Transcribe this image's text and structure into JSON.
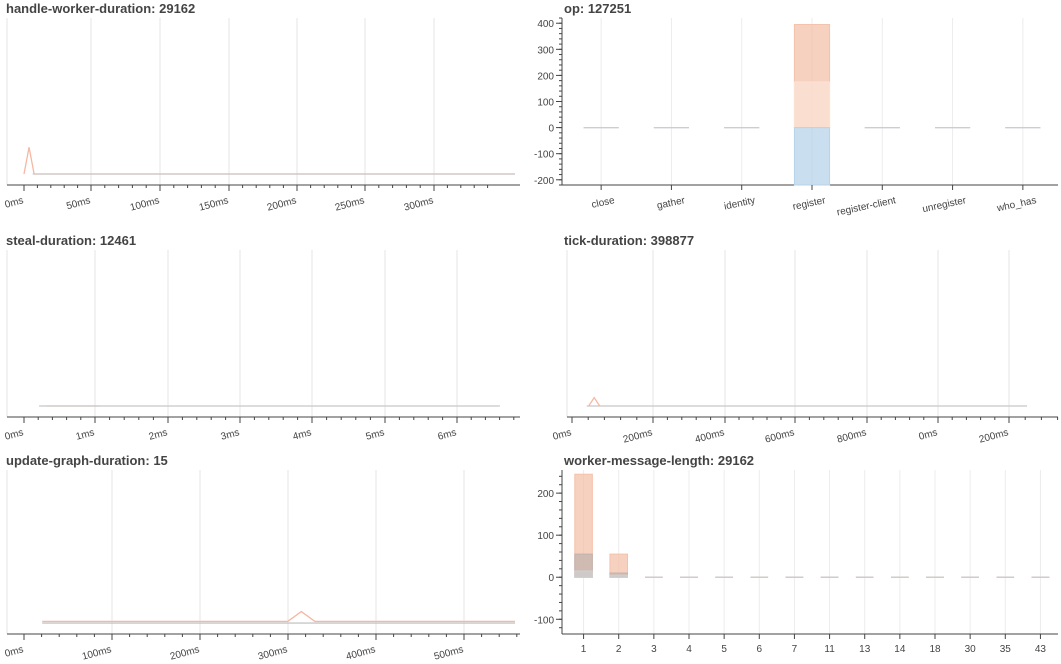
{
  "chart_data": [
    {
      "id": "p1",
      "type": "line",
      "title": "handle-worker-duration: 29162",
      "xlabel": "",
      "ylabel": "",
      "ticks": [
        "0ms",
        "50ms",
        "100ms",
        "150ms",
        "200ms",
        "250ms",
        "300ms"
      ],
      "xlim_ms": [
        0,
        340
      ],
      "ylim": [
        0,
        1
      ],
      "grid": true,
      "series": [
        {
          "color": "#f5b8a3",
          "x": [
            0,
            3.5,
            7,
            340
          ],
          "y": [
            0.03,
            0.19,
            0.03,
            0.03
          ]
        },
        {
          "color": "#c8c8c8",
          "x": [
            6,
            340
          ],
          "y": [
            0.03,
            0.03
          ]
        }
      ]
    },
    {
      "id": "p2",
      "type": "bar",
      "title": "op: 127251",
      "categories": [
        "close",
        "gather",
        "identity",
        "register",
        "register-client",
        "unregister",
        "who_has"
      ],
      "ylim": [
        -220,
        420
      ],
      "ytick_labels": [
        "400",
        "300",
        "200",
        "100",
        "0",
        "-100",
        "-200"
      ],
      "ytick_values": [
        400,
        300,
        200,
        100,
        0,
        -100,
        -200
      ],
      "grid": true,
      "series": [
        {
          "color": "#f4c2aa",
          "values": [
            0,
            0,
            0,
            395,
            0,
            0,
            0
          ]
        },
        {
          "color": "#fbe2d6",
          "values": [
            0,
            0,
            0,
            175,
            0,
            0,
            0
          ]
        },
        {
          "color": "#b7d3ea",
          "values": [
            0,
            0,
            0,
            -220,
            0,
            0,
            0
          ]
        }
      ]
    },
    {
      "id": "p3",
      "type": "line",
      "title": "steal-duration: 12461",
      "ticks": [
        "0ms",
        "1ms",
        "2ms",
        "3ms",
        "4ms",
        "5ms",
        "6ms"
      ],
      "xlim_ms": [
        0,
        6.5
      ],
      "ylim": [
        0,
        1
      ],
      "grid": true,
      "series": [
        {
          "color": "#f5b8a3",
          "x": [
            0.3,
            1.0
          ],
          "y": [
            0.03,
            0.03
          ]
        },
        {
          "color": "#c8c8c8",
          "x": [
            0.2,
            6.3
          ],
          "y": [
            0.03,
            0.03
          ]
        }
      ]
    },
    {
      "id": "p4",
      "type": "line",
      "title": "tick-duration: 398877",
      "ticks": [
        "0ms",
        "200ms",
        "400ms",
        "600ms",
        "800ms",
        "0ms",
        "200ms"
      ],
      "xlim_ms": [
        0,
        1300
      ],
      "ylim": [
        0,
        1
      ],
      "grid": true,
      "series": [
        {
          "color": "#f5b8a3",
          "x": [
            45,
            60,
            75
          ],
          "y": [
            0.03,
            0.08,
            0.03
          ]
        },
        {
          "color": "#c8c8c8",
          "x": [
            40,
            1230
          ],
          "y": [
            0.03,
            0.03
          ]
        }
      ]
    },
    {
      "id": "p5",
      "type": "line",
      "title": "update-graph-duration: 15",
      "ticks": [
        "0ms",
        "100ms",
        "200ms",
        "300ms",
        "400ms",
        "500ms"
      ],
      "xlim_ms": [
        0,
        540
      ],
      "ylim": [
        0,
        1
      ],
      "grid": true,
      "series": [
        {
          "color": "#f5b8a3",
          "x": [
            20,
            290,
            305,
            320,
            540
          ],
          "y": [
            0.04,
            0.04,
            0.1,
            0.04,
            0.04
          ]
        },
        {
          "color": "#c8c8c8",
          "x": [
            20,
            540
          ],
          "y": [
            0.03,
            0.03
          ]
        }
      ]
    },
    {
      "id": "p6",
      "type": "bar",
      "title": "worker-message-length: 29162",
      "categories": [
        "1",
        "2",
        "3",
        "4",
        "5",
        "6",
        "7",
        "11",
        "13",
        "14",
        "18",
        "30",
        "35",
        "43"
      ],
      "ylim": [
        -135,
        255
      ],
      "ytick_labels": [
        "200",
        "100",
        "0",
        "-100"
      ],
      "ytick_values": [
        200,
        100,
        0,
        -100
      ],
      "grid": true,
      "series": [
        {
          "color": "#f4c2aa",
          "values": [
            245,
            55,
            0,
            0,
            0,
            0,
            0,
            0,
            0,
            0,
            0,
            0,
            0,
            0
          ]
        },
        {
          "color": "#c2b3ad",
          "values": [
            55,
            10,
            0,
            0,
            0,
            0,
            0,
            0,
            0,
            0,
            0,
            0,
            0,
            0
          ]
        },
        {
          "color": "#cfcfcf",
          "values": [
            15,
            5,
            0,
            0,
            0,
            0,
            0,
            0,
            0,
            0,
            0,
            0,
            0,
            0
          ]
        }
      ]
    }
  ]
}
